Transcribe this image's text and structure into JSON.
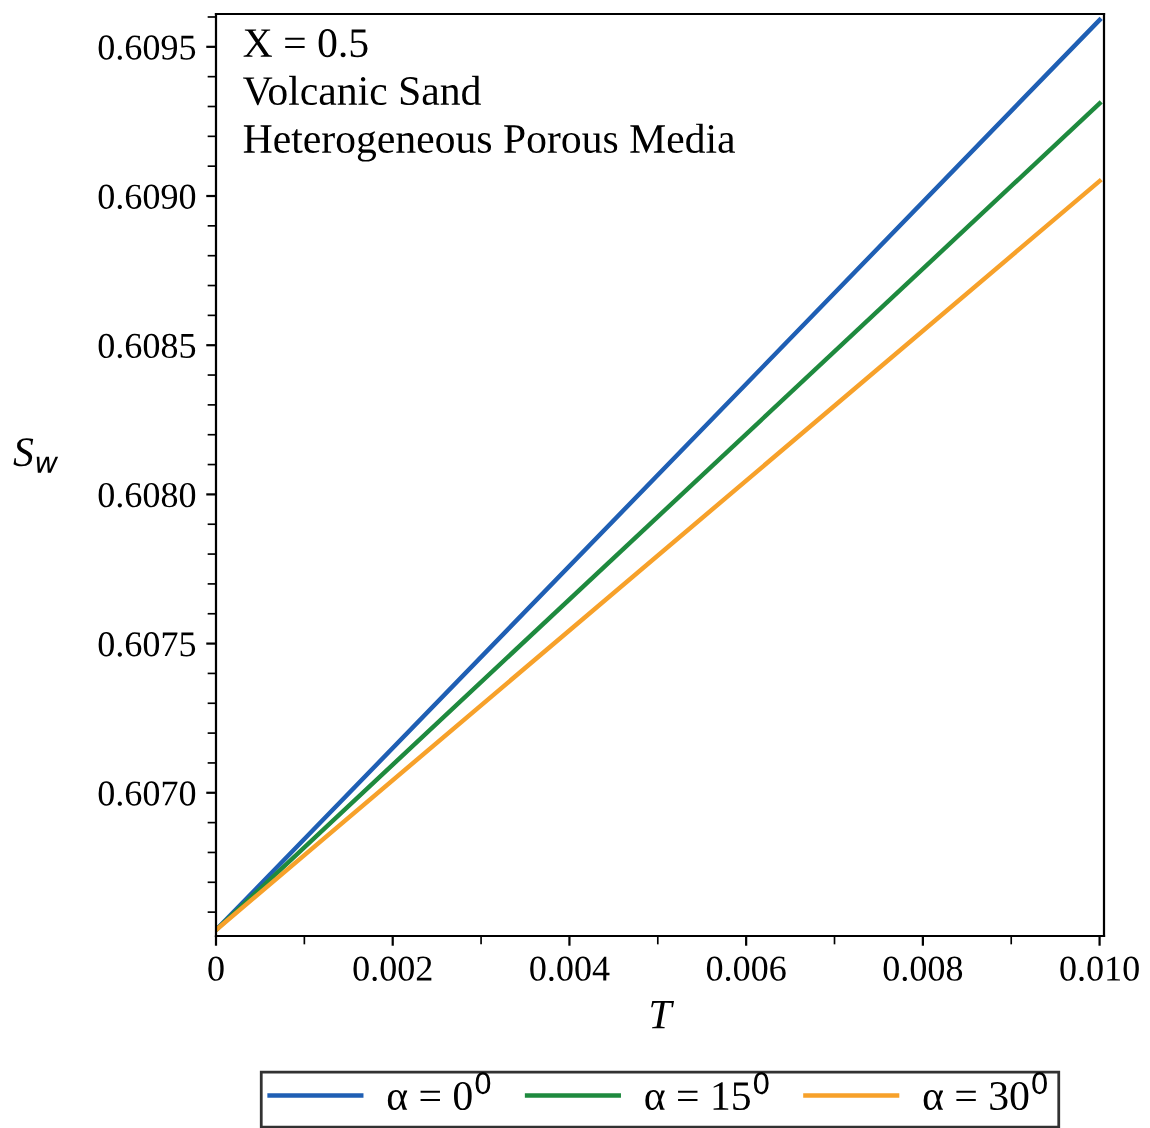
{
  "chart_data": {
    "type": "line",
    "xlabel": "T",
    "ylabel": "S$_{w}$",
    "annotations": [
      "X = 0.5",
      "Volcanic Sand",
      "Heterogeneous Porous Media"
    ],
    "x": [
      0,
      0.01
    ],
    "series": [
      {
        "name": "α = 0$^{0}$",
        "color": "#1f5fb4",
        "values": [
          0.60654,
          0.60959
        ]
      },
      {
        "name": "α = 15$^{0}$",
        "color": "#1e8a3e",
        "values": [
          0.60654,
          0.60931
        ]
      },
      {
        "name": "α = 30$^{0}$",
        "color": "#f7a12a",
        "values": [
          0.60654,
          0.60905
        ]
      }
    ],
    "xlim": [
      0,
      0.01005
    ],
    "ylim": [
      0.60652,
      0.60961
    ],
    "xticks": [
      0,
      0.002,
      0.004,
      0.006,
      0.008,
      {
        "value": 0.01,
        "label": "0.010"
      }
    ],
    "yticks": [
      {
        "value": 0.607,
        "label": "0.6070"
      },
      0.6075,
      {
        "value": 0.608,
        "label": "0.6080"
      },
      0.6085,
      {
        "value": 0.609,
        "label": "0.6090"
      },
      0.6095
    ],
    "grid": false,
    "legend": "bottom",
    "marker": "none",
    "line_style": "solid"
  }
}
